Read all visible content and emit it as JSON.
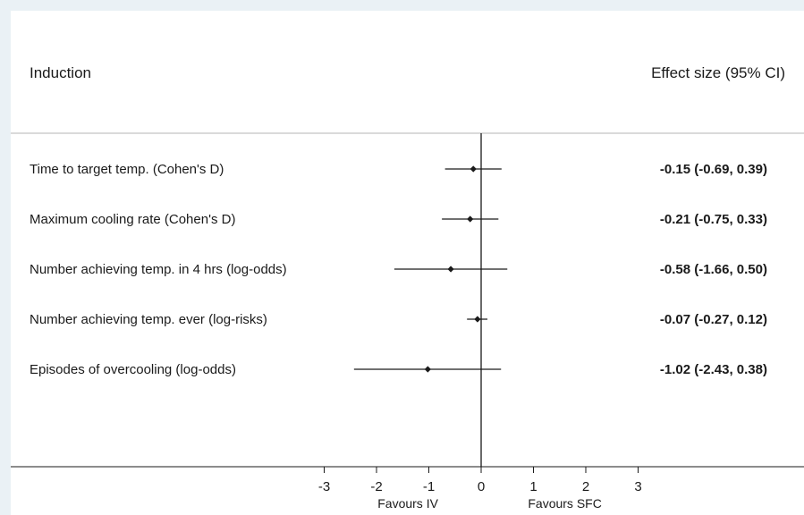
{
  "chart_data": {
    "type": "forest",
    "title": "",
    "column_headers": {
      "label": "Induction",
      "estimate": "Effect size (95% CI)"
    },
    "rows": [
      {
        "label": "Time to target temp. (Cohen's D)",
        "estimate": -0.15,
        "ci_low": -0.69,
        "ci_high": 0.39,
        "text": "-0.15 (-0.69, 0.39)"
      },
      {
        "label": "Maximum cooling rate (Cohen's D)",
        "estimate": -0.21,
        "ci_low": -0.75,
        "ci_high": 0.33,
        "text": "-0.21 (-0.75, 0.33)"
      },
      {
        "label": "Number achieving temp. in 4 hrs (log-odds)",
        "estimate": -0.58,
        "ci_low": -1.66,
        "ci_high": 0.5,
        "text": "-0.58 (-1.66, 0.50)"
      },
      {
        "label": "Number achieving temp. ever (log-risks)",
        "estimate": -0.07,
        "ci_low": -0.27,
        "ci_high": 0.12,
        "text": "-0.07 (-0.27, 0.12)"
      },
      {
        "label": "Episodes of overcooling (log-odds)",
        "estimate": -1.02,
        "ci_low": -2.43,
        "ci_high": 0.38,
        "text": "-1.02 (-2.43, 0.38)"
      }
    ],
    "x_ticks": [
      -3,
      -2,
      -1,
      0,
      1,
      2,
      3
    ],
    "x_tick_labels": [
      "-3",
      "-2",
      "-1",
      "0",
      "1",
      "2",
      "3"
    ],
    "xlim": [
      -3,
      3
    ],
    "null_line": 0,
    "favours_left": "Favours IV",
    "favours_right": "Favours SFC",
    "grid": false,
    "legend": "none"
  }
}
